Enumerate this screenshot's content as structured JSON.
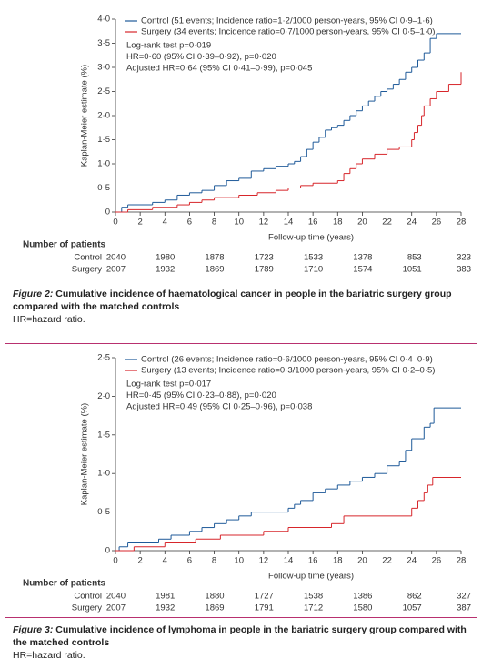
{
  "chart_data": [
    {
      "type": "step",
      "y_label": "Kaplan-Meier estimate (%)",
      "x_label": "Follow-up time (years)",
      "xlim": [
        0,
        28
      ],
      "xticks": [
        0,
        2,
        4,
        6,
        8,
        10,
        12,
        14,
        16,
        18,
        20,
        22,
        24,
        26,
        28
      ],
      "ylim": [
        0,
        4
      ],
      "yticks": [
        0,
        {
          "value": 0.5,
          "label": "0·5"
        },
        {
          "value": 1,
          "label": "1·0"
        },
        {
          "value": 1.5,
          "label": "1·5"
        },
        {
          "value": 2,
          "label": "2·0"
        },
        {
          "value": 2.5,
          "label": "2·5"
        },
        {
          "value": 3,
          "label": "3·0"
        },
        {
          "value": 3.5,
          "label": "3·5"
        },
        {
          "value": 4,
          "label": "4·0"
        }
      ],
      "series": [
        {
          "name": "Control (51 events; Incidence ratio=1·2/1000 person-years, 95% CI 0·9–1·6)",
          "color": "#1f5a99",
          "x": [
            0,
            0.5,
            1,
            3,
            4,
            5,
            6,
            7,
            8,
            9,
            10,
            11,
            12,
            13,
            14,
            14.5,
            15,
            15.5,
            16,
            16.5,
            17,
            17.5,
            18,
            18.5,
            19,
            19.5,
            20,
            20.5,
            21,
            21.5,
            22,
            22.5,
            23,
            23.5,
            24,
            24.5,
            25,
            25.5,
            26,
            28
          ],
          "values": [
            0,
            0.1,
            0.15,
            0.2,
            0.25,
            0.35,
            0.4,
            0.45,
            0.55,
            0.65,
            0.7,
            0.85,
            0.9,
            0.95,
            1.0,
            1.05,
            1.15,
            1.3,
            1.45,
            1.55,
            1.7,
            1.75,
            1.8,
            1.9,
            2.0,
            2.1,
            2.2,
            2.3,
            2.4,
            2.5,
            2.55,
            2.65,
            2.75,
            2.9,
            3.0,
            3.15,
            3.3,
            3.6,
            3.7,
            3.7
          ]
        },
        {
          "name": "Surgery (34 events; Incidence ratio=0·7/1000 person-years, 95% CI 0·5–1·0)",
          "color": "#d7262b",
          "x": [
            0,
            1,
            3,
            5,
            6,
            7,
            8,
            10,
            11.5,
            13,
            14,
            15,
            16,
            18,
            18.5,
            19,
            19.5,
            20,
            21,
            22,
            23,
            24,
            24.2,
            24.5,
            24.8,
            25,
            25.5,
            26,
            27,
            28
          ],
          "values": [
            0,
            0.05,
            0.1,
            0.15,
            0.2,
            0.25,
            0.3,
            0.35,
            0.4,
            0.45,
            0.5,
            0.55,
            0.6,
            0.65,
            0.8,
            0.9,
            1.0,
            1.1,
            1.2,
            1.3,
            1.35,
            1.5,
            1.65,
            1.8,
            2.0,
            2.2,
            2.35,
            2.5,
            2.65,
            2.9
          ]
        }
      ],
      "annotations": [
        "Log-rank test p=0·019",
        "HR=0·60 (95% CI 0·39–0·92), p=0·020",
        "Adjusted HR=0·64 (95% CI 0·41–0·99), p=0·045"
      ],
      "risk_table": {
        "title": "Number of patients",
        "rows": [
          {
            "name": "Control",
            "values": [
              2040,
              1980,
              1878,
              1723,
              1533,
              1378,
              853,
              323
            ]
          },
          {
            "name": "Surgery",
            "values": [
              2007,
              1932,
              1869,
              1789,
              1710,
              1574,
              1051,
              383
            ]
          }
        ]
      },
      "caption_label": "Figure 2:",
      "caption": "Cumulative incidence of haematological cancer in people in the bariatric surgery group compared with the matched controls",
      "note": "HR=hazard ratio."
    },
    {
      "type": "step",
      "y_label": "Kaplan-Meier estimate (%)",
      "x_label": "Follow-up time (years)",
      "xlim": [
        0,
        28
      ],
      "xticks": [
        0,
        2,
        4,
        6,
        8,
        10,
        12,
        14,
        16,
        18,
        20,
        22,
        24,
        26,
        28
      ],
      "ylim": [
        0,
        2.5
      ],
      "yticks": [
        0,
        {
          "value": 0.5,
          "label": "0·5"
        },
        {
          "value": 1,
          "label": "1·0"
        },
        {
          "value": 1.5,
          "label": "1·5"
        },
        {
          "value": 2,
          "label": "2·0"
        },
        {
          "value": 2.5,
          "label": "2·5"
        }
      ],
      "series": [
        {
          "name": "Control (26 events; Incidence ratio=0·6/1000 person-years, 95% CI 0·4–0·9)",
          "color": "#1f5a99",
          "x": [
            0,
            0.3,
            1,
            3.5,
            4.5,
            6,
            7,
            8,
            9,
            10,
            11,
            14,
            14.5,
            15,
            16,
            17,
            18,
            19,
            20,
            21,
            22,
            23,
            23.5,
            24,
            25,
            25.5,
            25.8,
            28
          ],
          "values": [
            0,
            0.05,
            0.1,
            0.15,
            0.2,
            0.25,
            0.3,
            0.35,
            0.4,
            0.45,
            0.5,
            0.55,
            0.6,
            0.65,
            0.75,
            0.8,
            0.85,
            0.9,
            0.95,
            1.0,
            1.1,
            1.15,
            1.3,
            1.45,
            1.6,
            1.65,
            1.85,
            1.85
          ]
        },
        {
          "name": "Surgery (13 events; Incidence ratio=0·3/1000 person-years, 95% CI 0·2–0·5)",
          "color": "#d7262b",
          "x": [
            0,
            1.5,
            4,
            6.5,
            8.5,
            12,
            14,
            17.5,
            18.5,
            24,
            24.5,
            25,
            25.3,
            25.7,
            28
          ],
          "values": [
            0,
            0.05,
            0.1,
            0.15,
            0.2,
            0.25,
            0.3,
            0.35,
            0.45,
            0.55,
            0.65,
            0.75,
            0.85,
            0.95,
            0.95
          ]
        }
      ],
      "annotations": [
        "Log-rank test p=0·017",
        "HR=0·45 (95% CI 0·23–0·88), p=0·020",
        "Adjusted HR=0·49 (95% CI 0·25–0·96), p=0·038"
      ],
      "risk_table": {
        "title": "Number of patients",
        "rows": [
          {
            "name": "Control",
            "values": [
              2040,
              1981,
              1880,
              1727,
              1538,
              1386,
              862,
              327
            ]
          },
          {
            "name": "Surgery",
            "values": [
              2007,
              1932,
              1869,
              1791,
              1712,
              1580,
              1057,
              387
            ]
          }
        ]
      },
      "caption_label": "Figure 3:",
      "caption": "Cumulative incidence of lymphoma in people in the bariatric surgery group compared with the matched controls",
      "note": "HR=hazard ratio."
    }
  ]
}
